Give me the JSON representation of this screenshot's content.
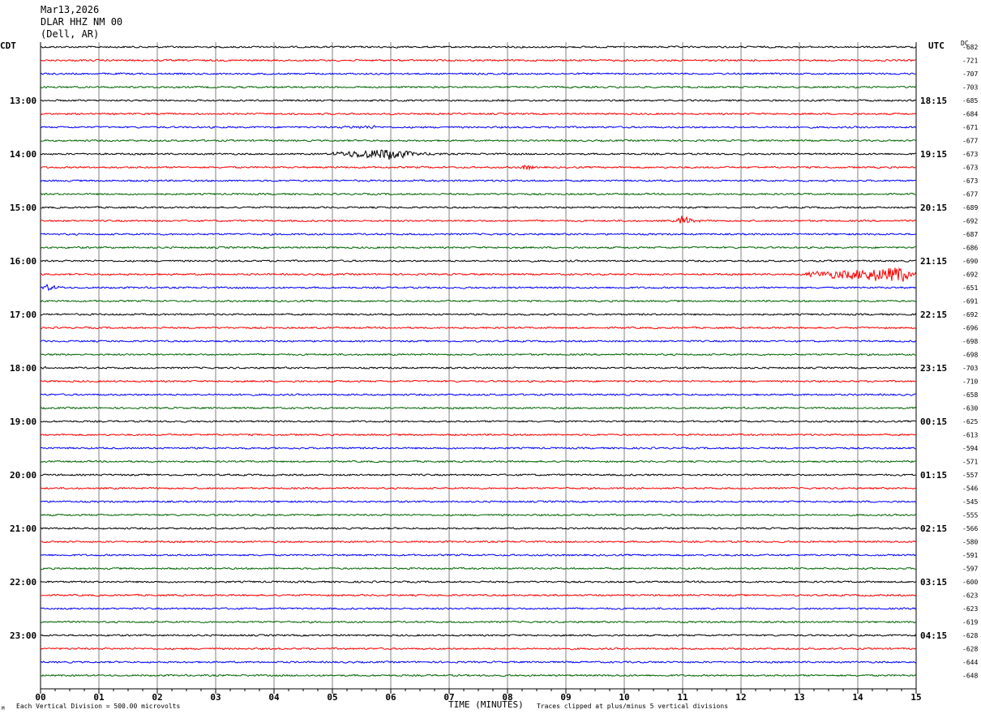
{
  "header": {
    "date": "Mar13,2026",
    "station": "DLAR HHZ NM 00",
    "location": "(Dell, AR)"
  },
  "timezone_left": "CDT",
  "timezone_right": "UTC",
  "dc_label": "DC",
  "footer": {
    "scale_note": "Each Vertical Division =  500.00 microvolts",
    "clip_note": "Traces clipped at plus/minus 5 vertical divisions",
    "mark": "M"
  },
  "colors": {
    "trace_cycle": [
      "#000000",
      "#ff0000",
      "#0000ff",
      "#006400"
    ],
    "grid": "#808080",
    "axis": "#000000"
  },
  "chart_data": {
    "type": "line",
    "description_type": "helicorder",
    "xlabel": "TIME (MINUTES)",
    "x_ticks": [
      "00",
      "01",
      "02",
      "03",
      "04",
      "05",
      "06",
      "07",
      "08",
      "09",
      "10",
      "11",
      "12",
      "13",
      "14",
      "15"
    ],
    "xlim": [
      0,
      15
    ],
    "trace_minutes": 15,
    "rows": 48,
    "left_hour_labels": [
      {
        "row": 4,
        "label": "13:00"
      },
      {
        "row": 8,
        "label": "14:00"
      },
      {
        "row": 12,
        "label": "15:00"
      },
      {
        "row": 16,
        "label": "16:00"
      },
      {
        "row": 20,
        "label": "17:00"
      },
      {
        "row": 24,
        "label": "18:00"
      },
      {
        "row": 28,
        "label": "19:00"
      },
      {
        "row": 32,
        "label": "20:00"
      },
      {
        "row": 36,
        "label": "21:00"
      },
      {
        "row": 40,
        "label": "22:00"
      },
      {
        "row": 44,
        "label": "23:00"
      }
    ],
    "right_hour_labels": [
      {
        "row": 4,
        "label": "18:15"
      },
      {
        "row": 8,
        "label": "19:15"
      },
      {
        "row": 12,
        "label": "20:15"
      },
      {
        "row": 16,
        "label": "21:15"
      },
      {
        "row": 20,
        "label": "22:15"
      },
      {
        "row": 24,
        "label": "23:15"
      },
      {
        "row": 28,
        "label": "00:15"
      },
      {
        "row": 32,
        "label": "01:15"
      },
      {
        "row": 36,
        "label": "02:15"
      },
      {
        "row": 40,
        "label": "03:15"
      },
      {
        "row": 44,
        "label": "04:15"
      }
    ],
    "dc_offsets": [
      "-682",
      "-721",
      "-707",
      "-703",
      "-685",
      "-684",
      "-671",
      "-677",
      "-673",
      "-673",
      "-673",
      "-677",
      "-689",
      "-692",
      "-687",
      "-686",
      "-690",
      "-692",
      "-651",
      "-691",
      "-692",
      "-696",
      "-698",
      "-698",
      "-703",
      "-710",
      "-658",
      "-630",
      "-625",
      "-613",
      "-594",
      "-571",
      "-557",
      "-546",
      "-545",
      "-555",
      "-566",
      "-580",
      "-591",
      "-597",
      "-600",
      "-623",
      "-623",
      "-619",
      "-628",
      "-628",
      "-644",
      "-648"
    ],
    "noise_level": 1.2,
    "events": [
      {
        "row": 6,
        "start_min": 4.6,
        "end_min": 6.0,
        "peak_min": 5.7,
        "amp": 2.5
      },
      {
        "row": 8,
        "start_min": 5.0,
        "end_min": 6.9,
        "peak_min": 6.0,
        "amp": 9
      },
      {
        "row": 9,
        "start_min": 8.2,
        "end_min": 8.6,
        "peak_min": 8.35,
        "amp": 5
      },
      {
        "row": 13,
        "start_min": 10.9,
        "end_min": 11.3,
        "peak_min": 11.02,
        "amp": 10
      },
      {
        "row": 17,
        "start_min": 13.1,
        "end_min": 15.0,
        "peak_min": 14.8,
        "amp": 12
      },
      {
        "row": 18,
        "start_min": 0.0,
        "end_min": 0.7,
        "peak_min": 0.1,
        "amp": 5
      },
      {
        "row": 24,
        "start_min": 0.0,
        "end_min": 0.35,
        "peak_min": 0.1,
        "amp": 2
      }
    ]
  }
}
